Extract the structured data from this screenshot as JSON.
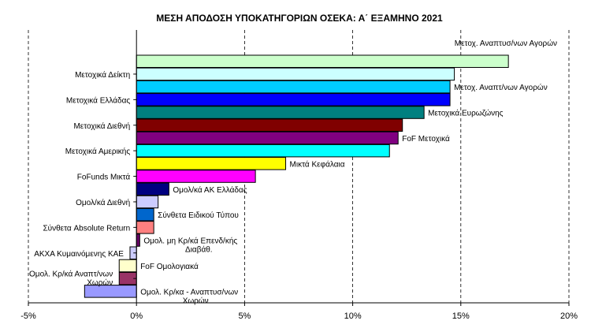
{
  "chart_data": {
    "type": "bar",
    "orientation": "horizontal",
    "title": "ΜΕΣΗ ΑΠΟΔΟΣΗ ΥΠΟΚΑΤΗΓΟΡΙΩΝ  ΟΣΕΚΑ: Α΄ ΕΞΑΜΗΝΟ 2021",
    "xlabel": "",
    "ylabel": "",
    "xlim": [
      -5,
      20
    ],
    "x_ticks": [
      "-5%",
      "0%",
      "5%",
      "10%",
      "15%",
      "20%"
    ],
    "x_tick_values": [
      -5,
      0,
      5,
      10,
      15,
      20
    ],
    "grid": "vertical dashed",
    "legend": "none",
    "categories": [
      {
        "label": "Μετοχ. Αναπτυσ/νων Αγορών",
        "value": 17.2,
        "color": "#ccffcc",
        "label_side": "right"
      },
      {
        "label": "Μετοχικά Δείκτη",
        "value": 14.7,
        "color": "#ccffff",
        "label_side": "left"
      },
      {
        "label": "Μετοχ. Αναπτ/νων Αγορών",
        "value": 14.5,
        "color": "#00ccff",
        "label_side": "right"
      },
      {
        "label": "Μετοχικά Ελλάδας",
        "value": 14.5,
        "color": "#0000ff",
        "label_side": "left"
      },
      {
        "label": "Μετοχικά Ευρωζώνης",
        "value": 13.3,
        "color": "#008080",
        "label_side": "right"
      },
      {
        "label": "Μετοχικά Διεθνή",
        "value": 12.3,
        "color": "#800000",
        "label_side": "left"
      },
      {
        "label": "FoF Μετοχικά",
        "value": 12.1,
        "color": "#800080",
        "label_side": "right"
      },
      {
        "label": "Μετοχικά Αμερικής",
        "value": 11.7,
        "color": "#00ffff",
        "label_side": "left"
      },
      {
        "label": "Μικτά Κεφάλαια",
        "value": 6.9,
        "color": "#ffff00",
        "label_side": "right"
      },
      {
        "label": "FoFunds Μικτά",
        "value": 5.5,
        "color": "#ff00ff",
        "label_side": "left"
      },
      {
        "label": "Ομολ/κά ΑΚ Ελλάδας",
        "value": 1.5,
        "color": "#000080",
        "label_side": "right"
      },
      {
        "label": "Ομολ/κά Διεθνή",
        "value": 1.0,
        "color": "#ccccff",
        "label_side": "left"
      },
      {
        "label": "Σύνθετα Ειδικού Τύπου",
        "value": 0.8,
        "color": "#0066cc",
        "label_side": "right"
      },
      {
        "label": "Σύνθετα Absolute Return",
        "value": 0.8,
        "color": "#ff8080",
        "label_side": "left"
      },
      {
        "label": "Ομολ. μη Κρ/κά Επενδ/κής Διαβάθ.",
        "value": 0.15,
        "color": "#660066",
        "label_side": "right"
      },
      {
        "label": "ΑΚΧΑ Κυμαινόμενης ΚΑΕ",
        "value": -0.3,
        "color": "#ccccff",
        "label_side": "left"
      },
      {
        "label": "FoF Ομολογιακά",
        "value": -0.8,
        "color": "#ffffcc",
        "label_side": "right"
      },
      {
        "label": "Ομολ. Κρ/κά Αναπτ/νων Χωρών",
        "value": -0.8,
        "color": "#993366",
        "label_side": "left"
      },
      {
        "label": "Ομολ. Κρ/κα - Αναπτυσ/νων Χωρών",
        "value": -2.4,
        "color": "#9999ff",
        "label_side": "right"
      }
    ]
  }
}
